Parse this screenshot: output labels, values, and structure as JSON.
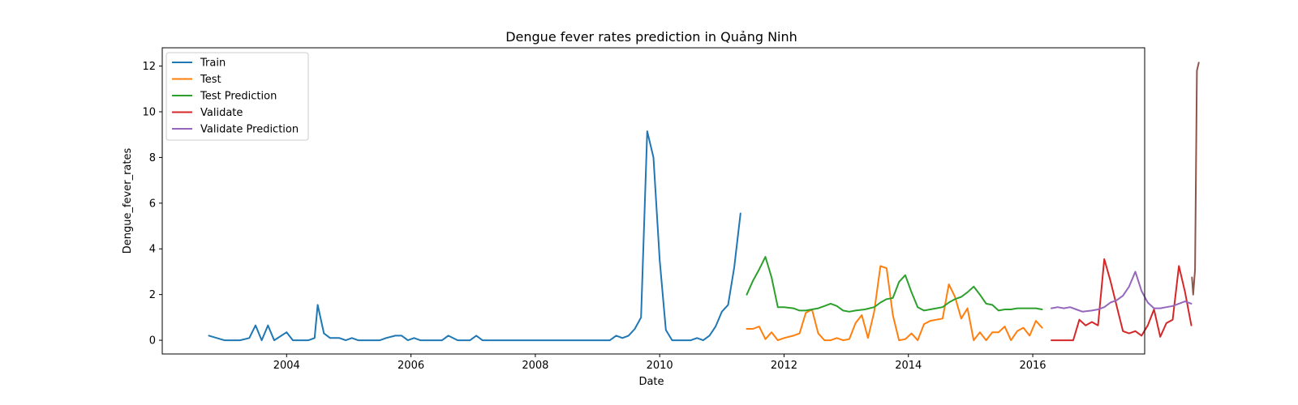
{
  "chart_data": {
    "type": "line",
    "title": "Dengue fever rates prediction in Quảng Ninh",
    "xlabel": "Date",
    "ylabel": "Dengue_fever_rates",
    "xlim": [
      2002.0,
      2017.8
    ],
    "ylim": [
      -0.6,
      12.8
    ],
    "xticks": [
      2004,
      2006,
      2008,
      2010,
      2012,
      2014,
      2016
    ],
    "yticks": [
      0,
      2,
      4,
      6,
      8,
      10,
      12
    ],
    "grid": false,
    "legend_position": "top-left",
    "series": [
      {
        "name": "Train",
        "color": "#1f77b4",
        "points": [
          [
            2002.75,
            0.2
          ],
          [
            2003.0,
            0.0
          ],
          [
            2003.25,
            0.0
          ],
          [
            2003.4,
            0.1
          ],
          [
            2003.5,
            0.65
          ],
          [
            2003.6,
            0.0
          ],
          [
            2003.7,
            0.65
          ],
          [
            2003.8,
            0.0
          ],
          [
            2004.0,
            0.35
          ],
          [
            2004.1,
            0.0
          ],
          [
            2004.35,
            0.0
          ],
          [
            2004.45,
            0.1
          ],
          [
            2004.5,
            1.55
          ],
          [
            2004.6,
            0.3
          ],
          [
            2004.7,
            0.1
          ],
          [
            2004.85,
            0.1
          ],
          [
            2004.95,
            0.0
          ],
          [
            2005.05,
            0.1
          ],
          [
            2005.15,
            0.0
          ],
          [
            2005.5,
            0.0
          ],
          [
            2005.6,
            0.1
          ],
          [
            2005.75,
            0.2
          ],
          [
            2005.85,
            0.2
          ],
          [
            2005.95,
            0.0
          ],
          [
            2006.05,
            0.1
          ],
          [
            2006.15,
            0.0
          ],
          [
            2006.5,
            0.0
          ],
          [
            2006.6,
            0.2
          ],
          [
            2006.75,
            0.0
          ],
          [
            2006.95,
            0.0
          ],
          [
            2007.05,
            0.2
          ],
          [
            2007.15,
            0.0
          ],
          [
            2008.0,
            0.0
          ],
          [
            2009.0,
            0.0
          ],
          [
            2009.2,
            0.0
          ],
          [
            2009.3,
            0.2
          ],
          [
            2009.4,
            0.1
          ],
          [
            2009.5,
            0.2
          ],
          [
            2009.6,
            0.5
          ],
          [
            2009.7,
            1.0
          ],
          [
            2009.8,
            9.15
          ],
          [
            2009.9,
            8.0
          ],
          [
            2010.0,
            3.5
          ],
          [
            2010.1,
            0.45
          ],
          [
            2010.2,
            0.0
          ],
          [
            2010.5,
            0.0
          ],
          [
            2010.6,
            0.1
          ],
          [
            2010.7,
            0.0
          ],
          [
            2010.8,
            0.2
          ],
          [
            2010.9,
            0.6
          ],
          [
            2011.0,
            1.25
          ],
          [
            2011.1,
            1.55
          ],
          [
            2011.2,
            3.2
          ],
          [
            2011.3,
            5.55
          ]
        ]
      },
      {
        "name": "Test",
        "color": "#ff7f0e",
        "points": [
          [
            2011.4,
            0.5
          ],
          [
            2011.5,
            0.5
          ],
          [
            2011.6,
            0.6
          ],
          [
            2011.7,
            0.05
          ],
          [
            2011.8,
            0.35
          ],
          [
            2011.9,
            0.0
          ],
          [
            2012.0,
            0.1
          ],
          [
            2012.15,
            0.2
          ],
          [
            2012.25,
            0.3
          ],
          [
            2012.35,
            1.2
          ],
          [
            2012.45,
            1.35
          ],
          [
            2012.55,
            0.3
          ],
          [
            2012.65,
            0.0
          ],
          [
            2012.75,
            0.0
          ],
          [
            2012.85,
            0.1
          ],
          [
            2012.95,
            0.0
          ],
          [
            2013.05,
            0.05
          ],
          [
            2013.15,
            0.75
          ],
          [
            2013.25,
            1.1
          ],
          [
            2013.35,
            0.1
          ],
          [
            2013.45,
            1.25
          ],
          [
            2013.55,
            3.25
          ],
          [
            2013.65,
            3.15
          ],
          [
            2013.75,
            1.1
          ],
          [
            2013.85,
            0.0
          ],
          [
            2013.95,
            0.05
          ],
          [
            2014.05,
            0.3
          ],
          [
            2014.15,
            0.0
          ],
          [
            2014.25,
            0.7
          ],
          [
            2014.35,
            0.85
          ],
          [
            2014.45,
            0.9
          ],
          [
            2014.55,
            0.95
          ],
          [
            2014.65,
            2.45
          ],
          [
            2014.75,
            1.9
          ],
          [
            2014.85,
            0.95
          ],
          [
            2014.95,
            1.4
          ],
          [
            2015.05,
            0.0
          ],
          [
            2015.15,
            0.35
          ],
          [
            2015.25,
            0.0
          ],
          [
            2015.35,
            0.35
          ],
          [
            2015.45,
            0.35
          ],
          [
            2015.55,
            0.6
          ],
          [
            2015.65,
            0.0
          ],
          [
            2015.75,
            0.4
          ],
          [
            2015.85,
            0.55
          ],
          [
            2015.95,
            0.2
          ],
          [
            2016.05,
            0.85
          ],
          [
            2016.15,
            0.55
          ]
        ]
      },
      {
        "name": "Test Prediction",
        "color": "#2ca02c",
        "points": [
          [
            2011.4,
            2.0
          ],
          [
            2011.5,
            2.6
          ],
          [
            2011.6,
            3.1
          ],
          [
            2011.7,
            3.65
          ],
          [
            2011.8,
            2.75
          ],
          [
            2011.9,
            1.45
          ],
          [
            2012.0,
            1.45
          ],
          [
            2012.15,
            1.4
          ],
          [
            2012.25,
            1.3
          ],
          [
            2012.35,
            1.3
          ],
          [
            2012.45,
            1.35
          ],
          [
            2012.55,
            1.4
          ],
          [
            2012.65,
            1.5
          ],
          [
            2012.75,
            1.6
          ],
          [
            2012.85,
            1.5
          ],
          [
            2012.95,
            1.3
          ],
          [
            2013.05,
            1.25
          ],
          [
            2013.15,
            1.3
          ],
          [
            2013.3,
            1.35
          ],
          [
            2013.45,
            1.45
          ],
          [
            2013.55,
            1.65
          ],
          [
            2013.65,
            1.8
          ],
          [
            2013.75,
            1.85
          ],
          [
            2013.85,
            2.55
          ],
          [
            2013.95,
            2.85
          ],
          [
            2014.05,
            2.1
          ],
          [
            2014.15,
            1.45
          ],
          [
            2014.25,
            1.3
          ],
          [
            2014.35,
            1.35
          ],
          [
            2014.45,
            1.4
          ],
          [
            2014.55,
            1.45
          ],
          [
            2014.65,
            1.65
          ],
          [
            2014.75,
            1.8
          ],
          [
            2014.85,
            1.9
          ],
          [
            2014.95,
            2.1
          ],
          [
            2015.05,
            2.35
          ],
          [
            2015.15,
            2.0
          ],
          [
            2015.25,
            1.6
          ],
          [
            2015.35,
            1.55
          ],
          [
            2015.45,
            1.3
          ],
          [
            2015.55,
            1.35
          ],
          [
            2015.65,
            1.35
          ],
          [
            2015.75,
            1.4
          ],
          [
            2015.85,
            1.4
          ],
          [
            2015.95,
            1.4
          ],
          [
            2016.05,
            1.4
          ],
          [
            2016.15,
            1.35
          ]
        ]
      },
      {
        "name": "Validate",
        "color": "#d62728",
        "points": [
          [
            2016.3,
            0.0
          ],
          [
            2016.4,
            0.0
          ],
          [
            2016.5,
            0.0
          ],
          [
            2016.65,
            0.0
          ],
          [
            2016.75,
            0.9
          ],
          [
            2016.85,
            0.65
          ],
          [
            2016.95,
            0.8
          ],
          [
            2017.05,
            0.65
          ],
          [
            2017.15,
            3.55
          ],
          [
            2017.25,
            2.6
          ],
          [
            2017.35,
            1.5
          ],
          [
            2017.45,
            0.4
          ],
          [
            2017.55,
            0.3
          ],
          [
            2017.65,
            0.4
          ],
          [
            2017.75,
            0.2
          ],
          [
            2017.85,
            0.65
          ],
          [
            2017.95,
            1.35
          ],
          [
            2018.05,
            0.15
          ],
          [
            2018.15,
            0.75
          ],
          [
            2018.25,
            0.9
          ],
          [
            2018.35,
            3.25
          ],
          [
            2018.45,
            2.1
          ],
          [
            2018.55,
            0.65
          ]
        ]
      },
      {
        "name": "Validate Prediction",
        "color": "#9467bd",
        "points": [
          [
            2016.3,
            1.4
          ],
          [
            2016.4,
            1.45
          ],
          [
            2016.5,
            1.4
          ],
          [
            2016.6,
            1.45
          ],
          [
            2016.7,
            1.35
          ],
          [
            2016.8,
            1.25
          ],
          [
            2016.95,
            1.3
          ],
          [
            2017.05,
            1.35
          ],
          [
            2017.15,
            1.45
          ],
          [
            2017.25,
            1.65
          ],
          [
            2017.35,
            1.75
          ],
          [
            2017.45,
            1.95
          ],
          [
            2017.55,
            2.35
          ],
          [
            2017.65,
            3.0
          ],
          [
            2017.75,
            2.15
          ],
          [
            2017.85,
            1.65
          ],
          [
            2017.95,
            1.4
          ],
          [
            2018.05,
            1.4
          ],
          [
            2018.15,
            1.45
          ],
          [
            2018.25,
            1.5
          ],
          [
            2018.35,
            1.6
          ],
          [
            2018.45,
            1.7
          ],
          [
            2018.55,
            1.6
          ]
        ]
      },
      {
        "name": "",
        "color": "#8c564b",
        "points": [
          [
            2018.56,
            2.75
          ],
          [
            2018.58,
            2.0
          ],
          [
            2018.61,
            3.1
          ],
          [
            2018.64,
            11.8
          ],
          [
            2018.67,
            12.15
          ]
        ]
      }
    ]
  }
}
